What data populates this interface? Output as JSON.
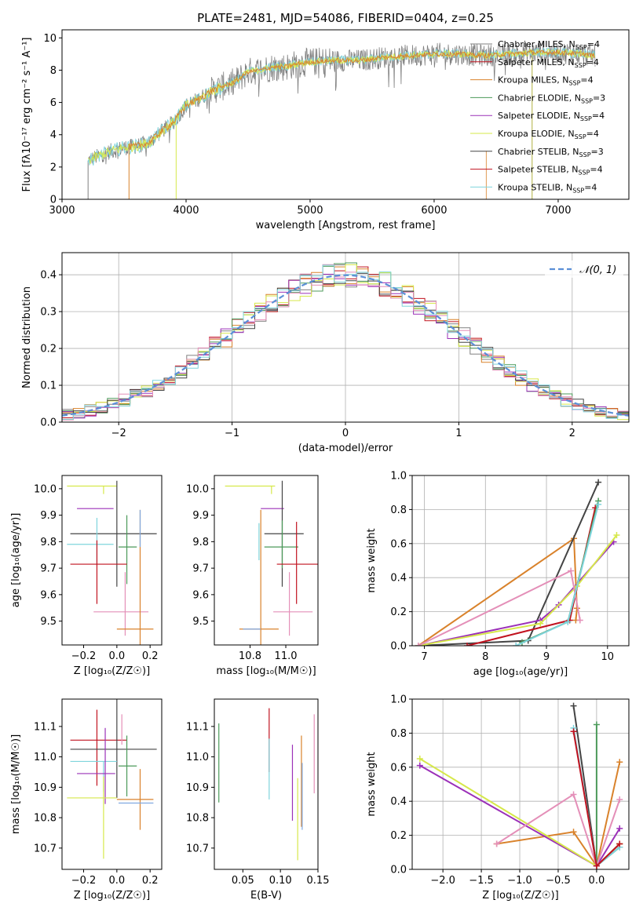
{
  "colors": {
    "grey": "#808080",
    "orange": "#d9822b",
    "darkorange": "#c8782a",
    "green": "#4c9a5a",
    "purple": "#9b30b8",
    "yellow": "#d6e84a",
    "darkgrey": "#444444",
    "red": "#c1121f",
    "cyan": "#7fd4dc",
    "pink": "#e48fb8",
    "blue": "#7fa8e0",
    "normal": "#5b8fd6"
  },
  "chart_data": [
    {
      "type": "line",
      "title": "PLATE=2481, MJD=54086, FIBERID=0404, z=0.25",
      "xlabel": "wavelength [Angstrom, rest frame]",
      "ylabel": "Flux [fλ10⁻¹⁷ erg cm⁻² s⁻¹ A⁻¹]",
      "xlim": [
        3000,
        7570
      ],
      "ylim": [
        0,
        10.5
      ],
      "xticks": [
        "3000",
        "4000",
        "5000",
        "6000",
        "7000"
      ],
      "yticks": [
        "0",
        "2",
        "4",
        "6",
        "8",
        "10"
      ],
      "x_anchor": [
        3210,
        3300,
        3400,
        3500,
        3600,
        3700,
        3800,
        3900,
        4000,
        4100,
        4200,
        4300,
        4400,
        4500,
        4600,
        4700,
        4800,
        4900,
        5000,
        5200,
        5400,
        5600,
        5800,
        6000,
        6200,
        6400,
        6600,
        6800,
        7000,
        7200,
        7300
      ],
      "y_anchor": [
        2.4,
        2.7,
        3.0,
        3.2,
        3.3,
        3.5,
        4.2,
        4.8,
        5.8,
        6.2,
        6.7,
        7.0,
        7.3,
        7.9,
        8.0,
        8.2,
        8.2,
        8.4,
        8.5,
        8.6,
        8.6,
        8.8,
        8.9,
        9.0,
        9.0,
        8.9,
        9.0,
        9.1,
        9.1,
        9.0,
        8.9
      ],
      "series": [
        {
          "name": "Chabrier MILES, N_SSP=4",
          "color": "#808080"
        },
        {
          "name": "Salpeter MILES, N_SSP=4",
          "color": "#c1121f"
        },
        {
          "name": "Kroupa MILES, N_SSP=4",
          "color": "#d9822b"
        },
        {
          "name": "Chabrier ELODIE, N_SSP=3",
          "color": "#4c9a5a"
        },
        {
          "name": "Salpeter ELODIE, N_SSP=4",
          "color": "#9b30b8"
        },
        {
          "name": "Kroupa ELODIE, N_SSP=4",
          "color": "#d6e84a"
        },
        {
          "name": "Chabrier STELIB, N_SSP=3",
          "color": "#444444"
        },
        {
          "name": "Salpeter STELIB, N_SSP=4",
          "color": "#c1121f"
        },
        {
          "name": "Kroupa STELIB, N_SSP=4",
          "color": "#7fd4dc"
        }
      ],
      "legend": "upper right"
    },
    {
      "type": "step-histogram",
      "xlabel": "(data-model)/error",
      "ylabel": "Normed distribution",
      "xlim": [
        -2.5,
        2.5
      ],
      "ylim": [
        0,
        0.46
      ],
      "xticks": [
        "−2",
        "−1",
        "0",
        "1",
        "2"
      ],
      "yticks": [
        "0.0",
        "0.1",
        "0.2",
        "0.3",
        "0.4"
      ],
      "legend_label": "𝒩(0, 1)",
      "bins": 50,
      "series_colors": [
        "#808080",
        "#c1121f",
        "#d9822b",
        "#4c9a5a",
        "#9b30b8",
        "#d6e84a",
        "#444444",
        "#e48fb8",
        "#7fd4dc"
      ]
    },
    {
      "type": "errorbar",
      "xlabel": "Z [log₁₀(Z/Z☉)]",
      "ylabel": "age  [log₁₀(age/yr)]",
      "xlim": [
        -0.33,
        0.27
      ],
      "ylim": [
        9.41,
        10.05
      ],
      "xticks": [
        "−0.2",
        "0.0",
        "0.2"
      ],
      "yticks": [
        "9.5",
        "9.6",
        "9.7",
        "9.8",
        "9.9",
        "10.0"
      ],
      "points": [
        {
          "x": -0.08,
          "y": 10.01,
          "xe": [
            0.22,
            0.08
          ],
          "ye": [
            0.03,
            0.0
          ],
          "c": "#d6e84a"
        },
        {
          "x": -0.07,
          "y": 9.925,
          "xe": [
            0.17,
            0.05
          ],
          "ye": [
            0.0,
            0.0
          ],
          "c": "#9b30b8"
        },
        {
          "x": 0.0,
          "y": 9.83,
          "xe": [
            0.28,
            0.24
          ],
          "ye": [
            0.2,
            0.2
          ],
          "c": "#444444"
        },
        {
          "x": -0.12,
          "y": 9.79,
          "xe": [
            0.18,
            0.1
          ],
          "ye": [
            0.08,
            0.1
          ],
          "c": "#7fd4dc"
        },
        {
          "x": 0.06,
          "y": 9.78,
          "xe": [
            0.05,
            0.06
          ],
          "ye": [
            0.14,
            0.12
          ],
          "c": "#4c9a5a"
        },
        {
          "x": -0.12,
          "y": 9.715,
          "xe": [
            0.16,
            0.18
          ],
          "ye": [
            0.15,
            0.09
          ],
          "c": "#c1121f"
        },
        {
          "x": 0.05,
          "y": 9.535,
          "xe": [
            0.19,
            0.14
          ],
          "ye": [
            0.09,
            0.15
          ],
          "c": "#e48fb8"
        },
        {
          "x": 0.14,
          "y": 9.47,
          "xe": [
            0.14,
            0.08
          ],
          "ye": [
            0.06,
            0.45
          ],
          "c": "#d9822b"
        },
        {
          "x": 0.14,
          "y": 9.84,
          "xe": [
            0.0,
            0.0
          ],
          "ye": [
            0.06,
            0.08
          ],
          "c": "#7fa8e0"
        }
      ]
    },
    {
      "type": "errorbar",
      "xlabel": "mass [log₁₀(M/M☉)]",
      "xlim": [
        10.6,
        11.18
      ],
      "ylim": [
        9.41,
        10.05
      ],
      "xticks": [
        "10.8",
        "11.0"
      ],
      "yticks": [
        "9.5",
        "9.6",
        "9.7",
        "9.8",
        "9.9",
        "10.0"
      ],
      "points": [
        {
          "x": 10.92,
          "y": 10.01,
          "xe": [
            0.26,
            0.02
          ],
          "ye": [
            0.03,
            0.0
          ],
          "c": "#d6e84a"
        },
        {
          "x": 10.94,
          "y": 9.925,
          "xe": [
            0.08,
            0.05
          ],
          "ye": [
            0.0,
            0.0
          ],
          "c": "#9b30b8"
        },
        {
          "x": 10.98,
          "y": 9.83,
          "xe": [
            0.1,
            0.12
          ],
          "ye": [
            0.2,
            0.2
          ],
          "c": "#444444"
        },
        {
          "x": 10.98,
          "y": 9.78,
          "xe": [
            0.1,
            0.09
          ],
          "ye": [
            0.08,
            0.1
          ],
          "c": "#4c9a5a"
        },
        {
          "x": 11.06,
          "y": 9.715,
          "xe": [
            0.11,
            0.13
          ],
          "ye": [
            0.15,
            0.16
          ],
          "c": "#c1121f"
        },
        {
          "x": 11.02,
          "y": 9.535,
          "xe": [
            0.09,
            0.13
          ],
          "ye": [
            0.09,
            0.15
          ],
          "c": "#e48fb8"
        },
        {
          "x": 10.86,
          "y": 9.47,
          "xe": [
            0.12,
            0.1
          ],
          "ye": [
            0.06,
            0.45
          ],
          "c": "#d9822b"
        },
        {
          "x": 10.86,
          "y": 9.47,
          "xe": [
            0.1,
            0.0
          ],
          "ye": [
            0.0,
            0.0
          ],
          "c": "#7fa8e0"
        },
        {
          "x": 10.85,
          "y": 9.79,
          "xe": [
            0.0,
            0.0
          ],
          "ye": [
            0.06,
            0.08
          ],
          "c": "#7fd4dc"
        }
      ]
    },
    {
      "type": "line-markers",
      "xlabel": "age  [log₁₀(age/yr)]",
      "ylabel": "mass weight",
      "xlim": [
        6.8,
        10.35
      ],
      "ylim": [
        0,
        1
      ],
      "xticks": [
        "7",
        "8",
        "9",
        "10"
      ],
      "yticks": [
        "0.0",
        "0.2",
        "0.4",
        "0.6",
        "0.8",
        "1.0"
      ],
      "series": [
        {
          "c": "#d9822b",
          "x": [
            6.9,
            9.45,
            9.5,
            9.48
          ],
          "y": [
            0.0,
            0.63,
            0.22,
            0.15
          ]
        },
        {
          "c": "#444444",
          "x": [
            6.9,
            8.7,
            9.85
          ],
          "y": [
            0.0,
            0.03,
            0.96
          ]
        },
        {
          "c": "#c1121f",
          "x": [
            7.7,
            9.38,
            9.8
          ],
          "y": [
            0.0,
            0.15,
            0.81
          ]
        },
        {
          "c": "#4c9a5a",
          "x": [
            8.6,
            9.35,
            9.85
          ],
          "y": [
            0.02,
            0.14,
            0.85
          ]
        },
        {
          "c": "#9b30b8",
          "x": [
            6.9,
            8.9,
            9.2,
            10.1
          ],
          "y": [
            0.0,
            0.15,
            0.24,
            0.61
          ]
        },
        {
          "c": "#d6e84a",
          "x": [
            6.9,
            8.9,
            9.5,
            10.15
          ],
          "y": [
            0.0,
            0.13,
            0.35,
            0.65
          ]
        },
        {
          "c": "#e48fb8",
          "x": [
            6.9,
            9.4,
            9.55
          ],
          "y": [
            0.0,
            0.44,
            0.15
          ]
        },
        {
          "c": "#7fd4dc",
          "x": [
            8.5,
            9.35,
            9.85
          ],
          "y": [
            0.0,
            0.14,
            0.83
          ]
        }
      ]
    },
    {
      "type": "errorbar",
      "xlabel": "Z [log₁₀(Z/Z☉)]",
      "ylabel": "mass [log₁₀(M/M☉)]",
      "xlim": [
        -0.33,
        0.27
      ],
      "ylim": [
        10.63,
        11.19
      ],
      "xticks": [
        "−0.2",
        "0.0",
        "0.2"
      ],
      "yticks": [
        "10.7",
        "10.8",
        "10.9",
        "11.0",
        "11.1"
      ],
      "points": [
        {
          "x": -0.12,
          "y": 11.055,
          "xe": [
            0.16,
            0.18
          ],
          "ye": [
            0.15,
            0.1
          ],
          "c": "#c1121f"
        },
        {
          "x": 0.0,
          "y": 11.025,
          "xe": [
            0.28,
            0.24
          ],
          "ye": [
            0.16,
            0.17
          ],
          "c": "#444444"
        },
        {
          "x": -0.08,
          "y": 10.985,
          "xe": [
            0.2,
            0.08
          ],
          "ye": [
            0.1,
            0.0
          ],
          "c": "#7fd4dc"
        },
        {
          "x": 0.06,
          "y": 10.97,
          "xe": [
            0.05,
            0.06
          ],
          "ye": [
            0.1,
            0.1
          ],
          "c": "#4c9a5a"
        },
        {
          "x": -0.07,
          "y": 10.945,
          "xe": [
            0.17,
            0.06
          ],
          "ye": [
            0.1,
            0.15
          ],
          "c": "#9b30b8"
        },
        {
          "x": -0.08,
          "y": 10.865,
          "xe": [
            0.22,
            0.08
          ],
          "ye": [
            0.2,
            0.07
          ],
          "c": "#d6e84a"
        },
        {
          "x": 0.14,
          "y": 10.86,
          "xe": [
            0.14,
            0.08
          ],
          "ye": [
            0.1,
            0.1
          ],
          "c": "#d9822b"
        },
        {
          "x": 0.14,
          "y": 10.848,
          "xe": [
            0.13,
            0.08
          ],
          "ye": [
            0.0,
            0.0
          ],
          "c": "#7fa8e0"
        },
        {
          "x": 0.03,
          "y": 11.04,
          "xe": [
            0.0,
            0.0
          ],
          "ye": [
            0.0,
            0.1
          ],
          "c": "#e48fb8"
        }
      ]
    },
    {
      "type": "errorbar",
      "xlabel": "E(B-V)",
      "xlim": [
        0.012,
        0.15
      ],
      "ylim": [
        10.63,
        11.19
      ],
      "xticks": [
        "0.05",
        "0.10",
        "0.15"
      ],
      "yticks": [
        "10.7",
        "10.8",
        "10.9",
        "11.0",
        "11.1"
      ],
      "points": [
        {
          "x": 0.018,
          "y": 10.98,
          "xe": [
            0,
            0
          ],
          "ye": [
            0.13,
            0.13
          ],
          "c": "#4c9a5a"
        },
        {
          "x": 0.085,
          "y": 11.05,
          "xe": [
            0,
            0
          ],
          "ye": [
            0.1,
            0.11
          ],
          "c": "#c1121f"
        },
        {
          "x": 0.085,
          "y": 10.96,
          "xe": [
            0,
            0
          ],
          "ye": [
            0.1,
            0.1
          ],
          "c": "#7fd4dc"
        },
        {
          "x": 0.116,
          "y": 10.96,
          "xe": [
            0,
            0
          ],
          "ye": [
            0.17,
            0.08
          ],
          "c": "#9b30b8"
        },
        {
          "x": 0.123,
          "y": 10.86,
          "xe": [
            0,
            0
          ],
          "ye": [
            0.2,
            0.07
          ],
          "c": "#d6e84a"
        },
        {
          "x": 0.128,
          "y": 10.97,
          "xe": [
            0,
            0
          ],
          "ye": [
            0.2,
            0.1
          ],
          "c": "#d9822b"
        },
        {
          "x": 0.129,
          "y": 10.9,
          "xe": [
            0,
            0
          ],
          "ye": [
            0.14,
            0.08
          ],
          "c": "#7fa8e0"
        },
        {
          "x": 0.145,
          "y": 11.01,
          "xe": [
            0,
            0
          ],
          "ye": [
            0.13,
            0.13
          ],
          "c": "#e48fb8"
        }
      ]
    },
    {
      "type": "line-markers",
      "xlabel": "Z [log₁₀(Z/Z☉)]",
      "ylabel": "mass weight",
      "xlim": [
        -2.4,
        0.42
      ],
      "ylim": [
        0,
        1
      ],
      "xticks": [
        "−2.0",
        "−1.5",
        "−1.0",
        "−0.5",
        "0.0"
      ],
      "yticks": [
        "0.0",
        "0.2",
        "0.4",
        "0.6",
        "0.8",
        "1.0"
      ],
      "series": [
        {
          "c": "#d9822b",
          "x": [
            -1.3,
            -0.3,
            0.0,
            0.3
          ],
          "y": [
            0.15,
            0.22,
            0.02,
            0.63
          ]
        },
        {
          "c": "#444444",
          "x": [
            -0.3,
            0.0,
            0.3
          ],
          "y": [
            0.96,
            0.02,
            0.15
          ]
        },
        {
          "c": "#4c9a5a",
          "x": [
            0.0,
            0.0,
            0.3
          ],
          "y": [
            0.85,
            0.02,
            0.13
          ]
        },
        {
          "c": "#9b30b8",
          "x": [
            -2.3,
            0.0,
            0.3
          ],
          "y": [
            0.61,
            0.02,
            0.24
          ]
        },
        {
          "c": "#d6e84a",
          "x": [
            -2.3,
            0.0,
            0.3
          ],
          "y": [
            0.65,
            0.02,
            0.15
          ]
        },
        {
          "c": "#e48fb8",
          "x": [
            -1.3,
            -0.3,
            0.0,
            0.3
          ],
          "y": [
            0.15,
            0.44,
            0.02,
            0.41
          ]
        },
        {
          "c": "#7fd4dc",
          "x": [
            -0.3,
            0.0,
            0.3
          ],
          "y": [
            0.83,
            0.02,
            0.13
          ]
        },
        {
          "c": "#c1121f",
          "x": [
            -0.3,
            0.0,
            0.3
          ],
          "y": [
            0.81,
            0.02,
            0.15
          ]
        }
      ]
    }
  ]
}
